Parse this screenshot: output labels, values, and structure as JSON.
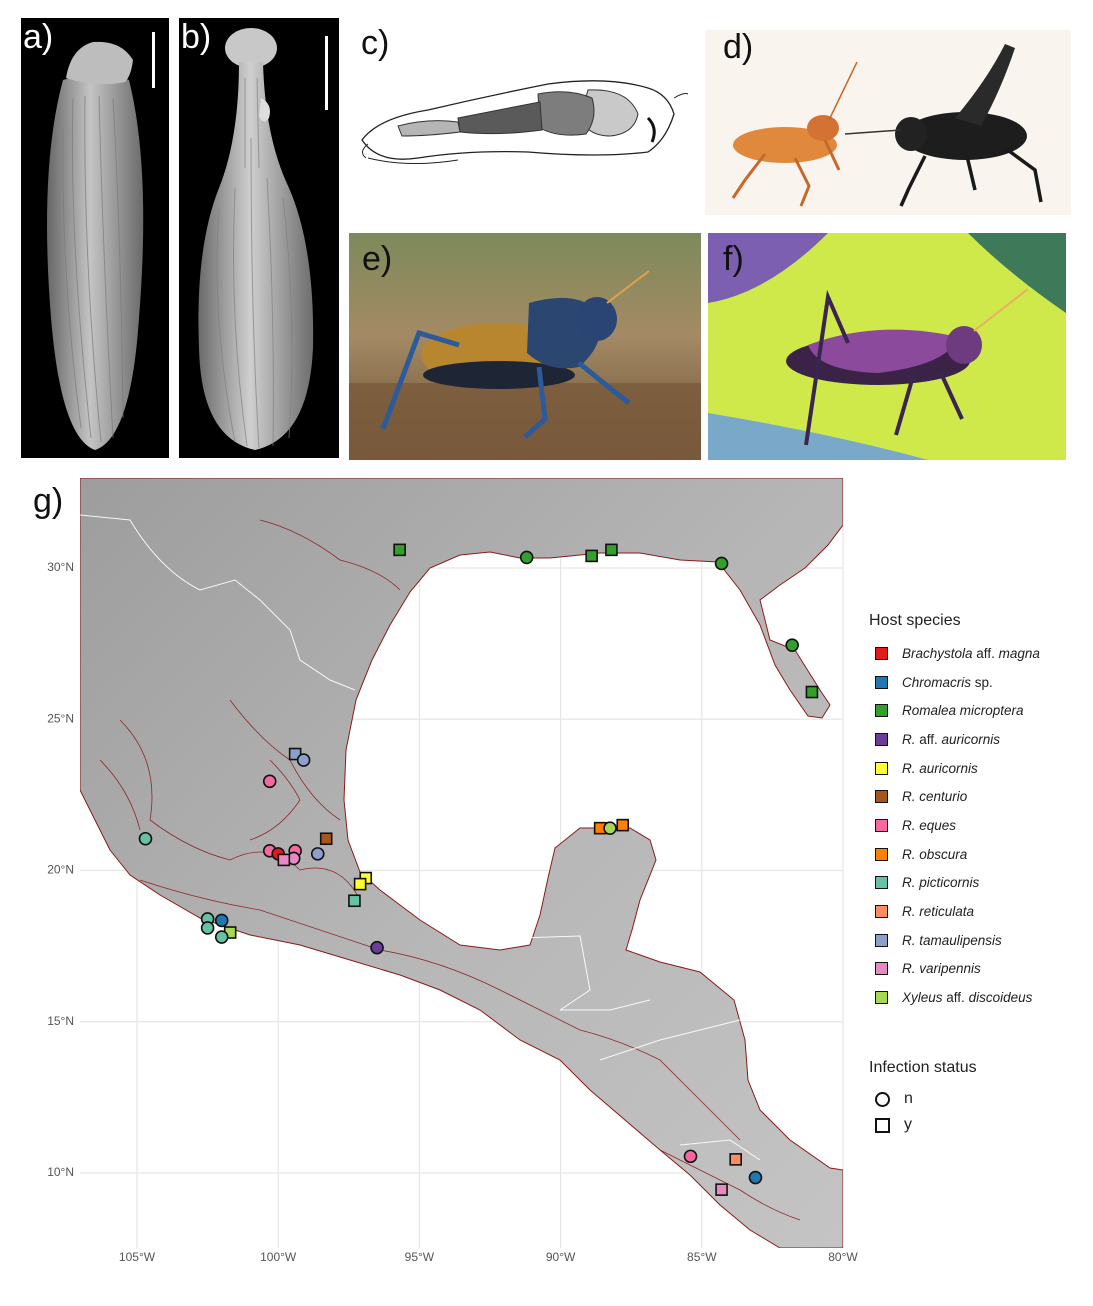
{
  "panel_labels": {
    "a": "a)",
    "b": "b)",
    "c": "c)",
    "d": "d)",
    "e": "e)",
    "f": "f)",
    "g": "g)"
  },
  "map": {
    "x_ticks": [
      "105°W",
      "100°W",
      "95°W",
      "90°W",
      "85°W",
      "80°W"
    ],
    "y_ticks": [
      "30°N",
      "25°N",
      "20°N",
      "15°N",
      "10°N"
    ],
    "legend_host_title": "Host species",
    "host_species": [
      {
        "key": "brachystola",
        "italic1": "Brachystola",
        "plain": " aff. ",
        "italic2": "magna",
        "color": "#e31a1c"
      },
      {
        "key": "chromacris",
        "italic1": "Chromacris",
        "plain": " sp.",
        "italic2": "",
        "color": "#1f78b4"
      },
      {
        "key": "romalea",
        "italic1": "Romalea microptera",
        "plain": "",
        "italic2": "",
        "color": "#33a02c"
      },
      {
        "key": "r_aff_auricornis",
        "italic1": "R.",
        "plain": " aff. ",
        "italic2": "auricornis",
        "color": "#6a3d9a"
      },
      {
        "key": "r_auricornis",
        "italic1": "R. auricornis",
        "plain": "",
        "italic2": "",
        "color": "#ffff33"
      },
      {
        "key": "r_centurio",
        "italic1": "R. centurio",
        "plain": "",
        "italic2": "",
        "color": "#a6561d"
      },
      {
        "key": "r_eques",
        "italic1": "R. eques",
        "plain": "",
        "italic2": "",
        "color": "#f768a1"
      },
      {
        "key": "r_obscura",
        "italic1": "R. obscura",
        "plain": "",
        "italic2": "",
        "color": "#ff7f00"
      },
      {
        "key": "r_picticornis",
        "italic1": "R. picticornis",
        "plain": "",
        "italic2": "",
        "color": "#66c2a5"
      },
      {
        "key": "r_reticulata",
        "italic1": "R. reticulata",
        "plain": "",
        "italic2": "",
        "color": "#fc8d62"
      },
      {
        "key": "r_tamaulipensis",
        "italic1": "R. tamaulipensis",
        "plain": "",
        "italic2": "",
        "color": "#8da0cb"
      },
      {
        "key": "r_varipennis",
        "italic1": "R. varipennis",
        "plain": "",
        "italic2": "",
        "color": "#e78ac3"
      },
      {
        "key": "xyleus",
        "italic1": "Xyleus",
        "plain": " aff. ",
        "italic2": "discoideus",
        "color": "#a6d854"
      }
    ],
    "legend_infection_title": "Infection status",
    "infection_status": [
      {
        "label": "n",
        "shape": "circle"
      },
      {
        "label": "y",
        "shape": "square"
      }
    ],
    "samples": [
      {
        "lon": -95.7,
        "lat": 30.6,
        "host": "romalea",
        "infected": "y"
      },
      {
        "lon": -91.2,
        "lat": 30.35,
        "host": "romalea",
        "infected": "n"
      },
      {
        "lon": -88.9,
        "lat": 30.4,
        "host": "romalea",
        "infected": "y"
      },
      {
        "lon": -88.2,
        "lat": 30.6,
        "host": "romalea",
        "infected": "y"
      },
      {
        "lon": -84.3,
        "lat": 30.15,
        "host": "romalea",
        "infected": "n"
      },
      {
        "lon": -81.8,
        "lat": 27.45,
        "host": "romalea",
        "infected": "n"
      },
      {
        "lon": -81.1,
        "lat": 25.9,
        "host": "romalea",
        "infected": "y"
      },
      {
        "lon": -99.4,
        "lat": 23.85,
        "host": "r_tamaulipensis",
        "infected": "y"
      },
      {
        "lon": -99.1,
        "lat": 23.65,
        "host": "r_tamaulipensis",
        "infected": "n"
      },
      {
        "lon": -100.3,
        "lat": 22.95,
        "host": "r_eques",
        "infected": "n"
      },
      {
        "lon": -98.3,
        "lat": 21.05,
        "host": "r_centurio",
        "infected": "y"
      },
      {
        "lon": -104.7,
        "lat": 21.05,
        "host": "r_picticornis",
        "infected": "n"
      },
      {
        "lon": -100.3,
        "lat": 20.65,
        "host": "r_eques",
        "infected": "n"
      },
      {
        "lon": -100.0,
        "lat": 20.55,
        "host": "brachystola",
        "infected": "n"
      },
      {
        "lon": -99.4,
        "lat": 20.65,
        "host": "r_eques",
        "infected": "n"
      },
      {
        "lon": -99.45,
        "lat": 20.4,
        "host": "r_varipennis",
        "infected": "n"
      },
      {
        "lon": -99.8,
        "lat": 20.35,
        "host": "r_varipennis",
        "infected": "y"
      },
      {
        "lon": -98.6,
        "lat": 20.55,
        "host": "r_tamaulipensis",
        "infected": "n"
      },
      {
        "lon": -96.9,
        "lat": 19.75,
        "host": "r_auricornis",
        "infected": "y"
      },
      {
        "lon": -97.1,
        "lat": 19.55,
        "host": "r_auricornis",
        "infected": "y"
      },
      {
        "lon": -97.3,
        "lat": 19.0,
        "host": "r_picticornis",
        "infected": "y"
      },
      {
        "lon": -96.5,
        "lat": 17.45,
        "host": "r_aff_auricornis",
        "infected": "n"
      },
      {
        "lon": -102.5,
        "lat": 18.4,
        "host": "r_picticornis",
        "infected": "n"
      },
      {
        "lon": -102.0,
        "lat": 18.35,
        "host": "chromacris",
        "infected": "n"
      },
      {
        "lon": -102.5,
        "lat": 18.1,
        "host": "r_picticornis",
        "infected": "n"
      },
      {
        "lon": -101.7,
        "lat": 17.95,
        "host": "xyleus",
        "infected": "y"
      },
      {
        "lon": -102.0,
        "lat": 17.8,
        "host": "r_picticornis",
        "infected": "n"
      },
      {
        "lon": -88.6,
        "lat": 21.4,
        "host": "r_obscura",
        "infected": "y"
      },
      {
        "lon": -88.25,
        "lat": 21.4,
        "host": "xyleus",
        "infected": "n"
      },
      {
        "lon": -87.8,
        "lat": 21.5,
        "host": "r_obscura",
        "infected": "y"
      },
      {
        "lon": -85.4,
        "lat": 10.55,
        "host": "r_eques",
        "infected": "n"
      },
      {
        "lon": -83.8,
        "lat": 10.45,
        "host": "r_reticulata",
        "infected": "y"
      },
      {
        "lon": -83.1,
        "lat": 9.85,
        "host": "chromacris",
        "infected": "n"
      },
      {
        "lon": -84.3,
        "lat": 9.45,
        "host": "r_varipennis",
        "infected": "y"
      }
    ]
  }
}
